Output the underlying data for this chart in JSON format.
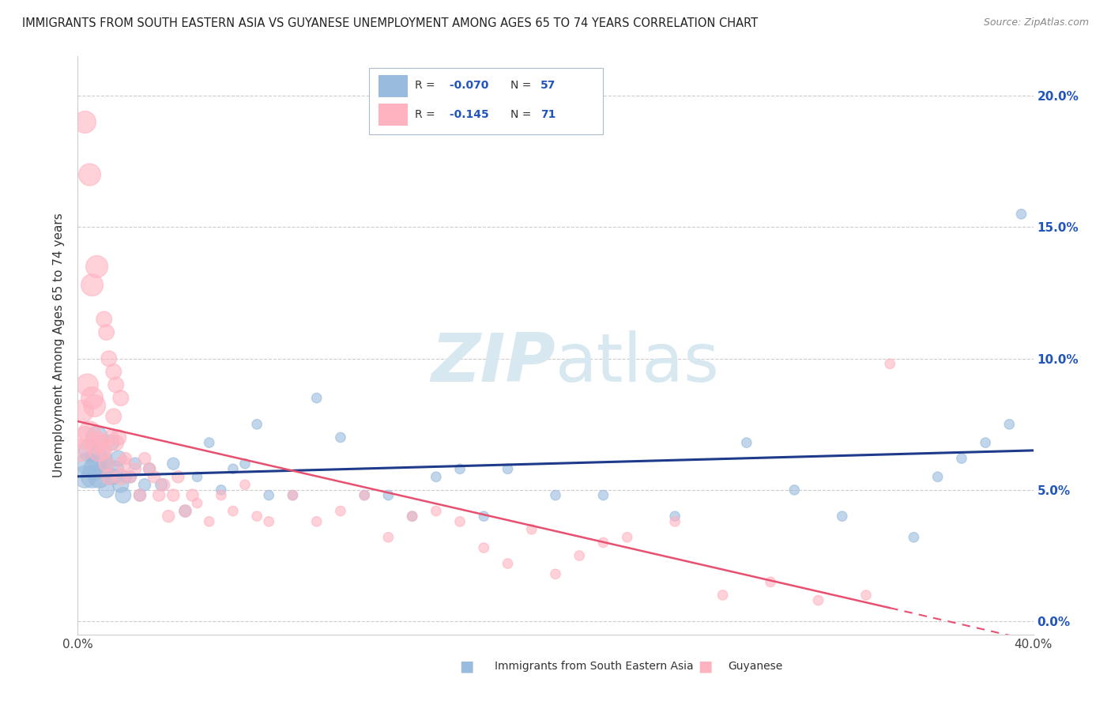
{
  "title": "IMMIGRANTS FROM SOUTH EASTERN ASIA VS GUYANESE UNEMPLOYMENT AMONG AGES 65 TO 74 YEARS CORRELATION CHART",
  "source": "Source: ZipAtlas.com",
  "ylabel": "Unemployment Among Ages 65 to 74 years",
  "xlim": [
    0.0,
    0.4
  ],
  "ylim": [
    -0.005,
    0.215
  ],
  "yticks": [
    0.0,
    0.05,
    0.1,
    0.15,
    0.2
  ],
  "xticks": [
    0.0,
    0.05,
    0.1,
    0.15,
    0.2,
    0.25,
    0.3,
    0.35,
    0.4
  ],
  "blue_color": "#99BBDD",
  "pink_color": "#FFB3C1",
  "blue_edge_color": "#99BBDD",
  "pink_edge_color": "#FFB3C1",
  "blue_line_color": "#1E3A8A",
  "pink_line_color": "#E85070",
  "background_color": "#FFFFFF",
  "grid_color": "#CCCCCC",
  "watermark_color": "#D8E8F0",
  "legend_label_blue": "Immigrants from South Eastern Asia",
  "legend_label_pink": "Guyanese",
  "blue_R": -0.07,
  "blue_N": 57,
  "pink_R": -0.145,
  "pink_N": 71,
  "blue_scatter_x": [
    0.003,
    0.004,
    0.005,
    0.006,
    0.007,
    0.008,
    0.008,
    0.009,
    0.01,
    0.011,
    0.012,
    0.012,
    0.013,
    0.014,
    0.015,
    0.016,
    0.017,
    0.018,
    0.019,
    0.02,
    0.022,
    0.024,
    0.026,
    0.028,
    0.03,
    0.035,
    0.04,
    0.045,
    0.05,
    0.055,
    0.06,
    0.065,
    0.07,
    0.075,
    0.08,
    0.09,
    0.1,
    0.11,
    0.12,
    0.13,
    0.14,
    0.15,
    0.16,
    0.17,
    0.18,
    0.2,
    0.22,
    0.25,
    0.28,
    0.3,
    0.32,
    0.35,
    0.36,
    0.37,
    0.38,
    0.39,
    0.395
  ],
  "blue_scatter_y": [
    0.055,
    0.06,
    0.065,
    0.055,
    0.058,
    0.062,
    0.07,
    0.055,
    0.058,
    0.062,
    0.05,
    0.06,
    0.055,
    0.068,
    0.055,
    0.058,
    0.062,
    0.052,
    0.048,
    0.055,
    0.055,
    0.06,
    0.048,
    0.052,
    0.058,
    0.052,
    0.06,
    0.042,
    0.055,
    0.068,
    0.05,
    0.058,
    0.06,
    0.075,
    0.048,
    0.048,
    0.085,
    0.07,
    0.048,
    0.048,
    0.04,
    0.055,
    0.058,
    0.04,
    0.058,
    0.048,
    0.048,
    0.04,
    0.068,
    0.05,
    0.04,
    0.032,
    0.055,
    0.062,
    0.068,
    0.075,
    0.155
  ],
  "pink_scatter_x": [
    0.001,
    0.002,
    0.003,
    0.003,
    0.004,
    0.005,
    0.005,
    0.006,
    0.006,
    0.007,
    0.008,
    0.008,
    0.009,
    0.01,
    0.011,
    0.011,
    0.012,
    0.012,
    0.013,
    0.013,
    0.014,
    0.015,
    0.015,
    0.016,
    0.016,
    0.017,
    0.018,
    0.018,
    0.019,
    0.02,
    0.022,
    0.024,
    0.026,
    0.028,
    0.03,
    0.032,
    0.034,
    0.036,
    0.038,
    0.04,
    0.042,
    0.045,
    0.048,
    0.05,
    0.055,
    0.06,
    0.065,
    0.07,
    0.075,
    0.08,
    0.09,
    0.1,
    0.11,
    0.12,
    0.13,
    0.14,
    0.15,
    0.16,
    0.17,
    0.18,
    0.19,
    0.2,
    0.21,
    0.22,
    0.23,
    0.25,
    0.27,
    0.29,
    0.31,
    0.33,
    0.34
  ],
  "pink_scatter_y": [
    0.065,
    0.08,
    0.19,
    0.07,
    0.09,
    0.072,
    0.17,
    0.085,
    0.128,
    0.082,
    0.068,
    0.135,
    0.065,
    0.068,
    0.065,
    0.115,
    0.06,
    0.11,
    0.055,
    0.1,
    0.07,
    0.078,
    0.095,
    0.068,
    0.09,
    0.07,
    0.055,
    0.085,
    0.06,
    0.062,
    0.055,
    0.058,
    0.048,
    0.062,
    0.058,
    0.055,
    0.048,
    0.052,
    0.04,
    0.048,
    0.055,
    0.042,
    0.048,
    0.045,
    0.038,
    0.048,
    0.042,
    0.052,
    0.04,
    0.038,
    0.048,
    0.038,
    0.042,
    0.048,
    0.032,
    0.04,
    0.042,
    0.038,
    0.028,
    0.022,
    0.035,
    0.018,
    0.025,
    0.03,
    0.032,
    0.038,
    0.01,
    0.015,
    0.008,
    0.01,
    0.098
  ]
}
